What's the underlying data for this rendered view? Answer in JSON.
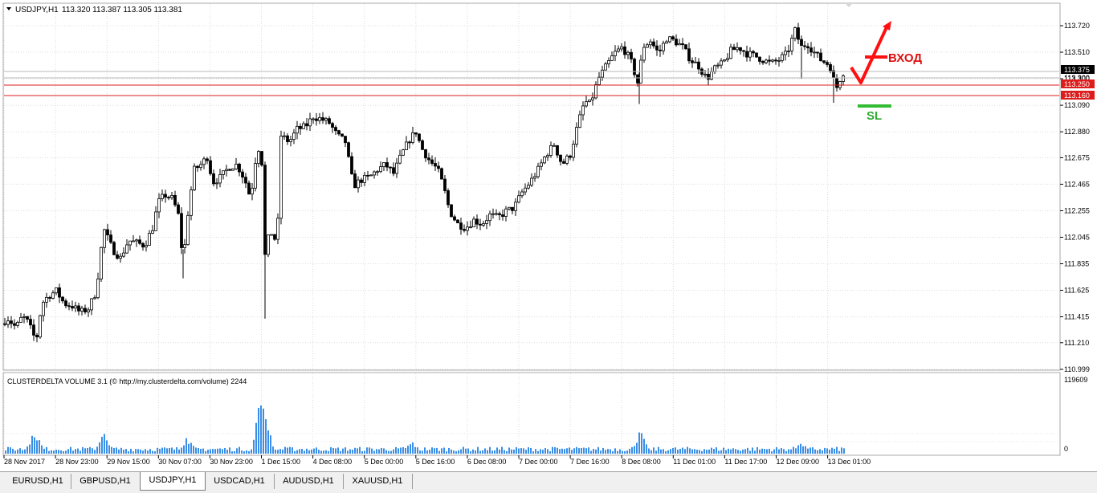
{
  "chart_header": {
    "symbol": "USDJPY,H1",
    "ohlc": "113.320 113.387 113.305 113.381"
  },
  "indicator": {
    "label": "CLUSTERDELTA VOLUME 3.1 (© http://my.clusterdelta.com/volume) 2244",
    "max_label": "119609",
    "zero_label": "0"
  },
  "annotations": {
    "entry_label": "ВХОД",
    "sl_label": "SL",
    "arrow_color": "#ff1010",
    "sl_color": "#33bb33"
  },
  "levels": [
    {
      "price": "113.250",
      "color": "#dd1c1c"
    },
    {
      "price": "113.160",
      "color": "#dd1c1c"
    }
  ],
  "current_price": "113.375",
  "secondary_price": "113.300",
  "tabs": [
    {
      "label": "EURUSD,H1",
      "active": false
    },
    {
      "label": "GBPUSD,H1",
      "active": false
    },
    {
      "label": "USDJPY,H1",
      "active": true
    },
    {
      "label": "USDCAD,H1",
      "active": false
    },
    {
      "label": "AUDUSD,H1",
      "active": false
    },
    {
      "label": "XAUUSD,H1",
      "active": false
    }
  ],
  "chart_data": {
    "type": "candlestick",
    "title": "USDJPY,H1",
    "y_ticks": [
      "113.720",
      "113.510",
      "113.300",
      "113.090",
      "112.880",
      "112.675",
      "112.465",
      "112.255",
      "112.045",
      "111.835",
      "111.625",
      "111.415",
      "111.210",
      "110.999"
    ],
    "ylim": [
      110.999,
      113.76
    ],
    "x_ticks": [
      "28 Nov 2017",
      "28 Nov 23:00",
      "29 Nov 15:00",
      "30 Nov 07:00",
      "30 Nov 23:00",
      "1 Dec 15:00",
      "4 Dec 08:00",
      "5 Dec 00:00",
      "5 Dec 16:00",
      "6 Dec 08:00",
      "7 Dec 00:00",
      "7 Dec 16:00",
      "8 Dec 08:00",
      "11 Dec 01:00",
      "11 Dec 17:00",
      "12 Dec 09:00",
      "13 Dec 01:00"
    ],
    "price_path": [
      [
        0,
        111.36
      ],
      [
        10,
        111.4
      ],
      [
        20,
        111.33
      ],
      [
        28,
        111.42
      ],
      [
        35,
        111.37
      ],
      [
        45,
        111.22
      ],
      [
        52,
        111.52
      ],
      [
        60,
        111.58
      ],
      [
        70,
        111.62
      ],
      [
        80,
        111.52
      ],
      [
        90,
        111.5
      ],
      [
        100,
        111.45
      ],
      [
        110,
        111.48
      ],
      [
        120,
        111.62
      ],
      [
        125,
        111.92
      ],
      [
        130,
        112.1
      ],
      [
        140,
        111.95
      ],
      [
        150,
        111.88
      ],
      [
        160,
        112.02
      ],
      [
        170,
        112.0
      ],
      [
        180,
        111.98
      ],
      [
        190,
        112.12
      ],
      [
        197,
        112.32
      ],
      [
        205,
        112.38
      ],
      [
        215,
        112.35
      ],
      [
        222,
        112.22
      ],
      [
        228,
        111.85
      ],
      [
        235,
        112.3
      ],
      [
        242,
        112.58
      ],
      [
        250,
        112.62
      ],
      [
        258,
        112.68
      ],
      [
        265,
        112.48
      ],
      [
        275,
        112.52
      ],
      [
        285,
        112.6
      ],
      [
        295,
        112.62
      ],
      [
        305,
        112.5
      ],
      [
        312,
        112.35
      ],
      [
        318,
        112.65
      ],
      [
        325,
        112.82
      ],
      [
        330,
        111.9
      ],
      [
        336,
        112.1
      ],
      [
        345,
        112.0
      ],
      [
        350,
        112.85
      ],
      [
        360,
        112.8
      ],
      [
        370,
        112.9
      ],
      [
        380,
        112.92
      ],
      [
        390,
        113.0
      ],
      [
        400,
        112.98
      ],
      [
        410,
        112.95
      ],
      [
        420,
        112.85
      ],
      [
        430,
        112.8
      ],
      [
        440,
        112.45
      ],
      [
        450,
        112.5
      ],
      [
        460,
        112.52
      ],
      [
        470,
        112.58
      ],
      [
        480,
        112.62
      ],
      [
        490,
        112.55
      ],
      [
        500,
        112.7
      ],
      [
        510,
        112.82
      ],
      [
        518,
        112.88
      ],
      [
        525,
        112.75
      ],
      [
        535,
        112.65
      ],
      [
        545,
        112.58
      ],
      [
        552,
        112.45
      ],
      [
        560,
        112.25
      ],
      [
        570,
        112.15
      ],
      [
        580,
        112.12
      ],
      [
        590,
        112.18
      ],
      [
        600,
        112.15
      ],
      [
        610,
        112.22
      ],
      [
        620,
        112.2
      ],
      [
        630,
        112.25
      ],
      [
        640,
        112.28
      ],
      [
        650,
        112.4
      ],
      [
        660,
        112.48
      ],
      [
        670,
        112.58
      ],
      [
        680,
        112.7
      ],
      [
        690,
        112.78
      ],
      [
        700,
        112.62
      ],
      [
        710,
        112.7
      ],
      [
        720,
        112.95
      ],
      [
        728,
        113.12
      ],
      [
        735,
        113.1
      ],
      [
        745,
        113.3
      ],
      [
        755,
        113.4
      ],
      [
        765,
        113.5
      ],
      [
        775,
        113.55
      ],
      [
        785,
        113.45
      ],
      [
        795,
        113.25
      ],
      [
        800,
        113.55
      ],
      [
        810,
        113.6
      ],
      [
        820,
        113.5
      ],
      [
        830,
        113.62
      ],
      [
        840,
        113.6
      ],
      [
        850,
        113.55
      ],
      [
        860,
        113.45
      ],
      [
        870,
        113.4
      ],
      [
        880,
        113.3
      ],
      [
        890,
        113.38
      ],
      [
        900,
        113.42
      ],
      [
        910,
        113.52
      ],
      [
        920,
        113.55
      ],
      [
        930,
        113.5
      ],
      [
        940,
        113.48
      ],
      [
        950,
        113.45
      ],
      [
        960,
        113.42
      ],
      [
        970,
        113.45
      ],
      [
        980,
        113.5
      ],
      [
        990,
        113.68
      ],
      [
        998,
        113.55
      ],
      [
        1005,
        113.58
      ],
      [
        1015,
        113.5
      ],
      [
        1022,
        113.45
      ],
      [
        1030,
        113.42
      ],
      [
        1036,
        113.38
      ],
      [
        1040,
        113.2
      ],
      [
        1046,
        113.3
      ],
      [
        1050,
        113.35
      ]
    ],
    "volume_spikes": [
      [
        42,
        0.35
      ],
      [
        128,
        0.3
      ],
      [
        232,
        0.25
      ],
      [
        326,
        1.0
      ],
      [
        332,
        0.22
      ],
      [
        512,
        0.18
      ],
      [
        796,
        0.32
      ],
      [
        996,
        0.18
      ]
    ]
  }
}
